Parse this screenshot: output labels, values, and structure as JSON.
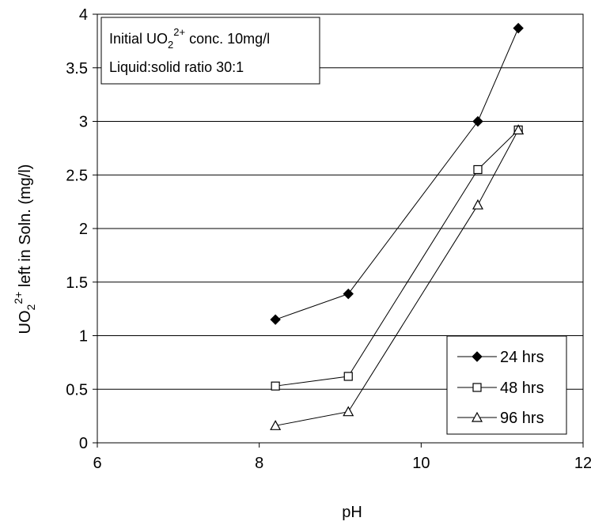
{
  "chart_data": {
    "type": "line",
    "title": "",
    "xlabel": "pH",
    "ylabel": {
      "prefix": "UO",
      "sub": "2",
      "sup": "2+",
      "suffix": " left in Soln. (mg/l)"
    },
    "xlim": [
      6,
      12
    ],
    "ylim": [
      0,
      4
    ],
    "x_ticks": [
      "6",
      "8",
      "10",
      "12"
    ],
    "y_ticks": [
      "0",
      "0.5",
      "1",
      "1.5",
      "2",
      "2.5",
      "3",
      "3.5",
      "4"
    ],
    "grid": "horizontal",
    "legend_position": "bottom-right",
    "annotation": {
      "line1_prefix": "Initial UO",
      "line1_sub": "2",
      "line1_sup": "2+",
      "line1_suffix": " conc. 10mg/l",
      "line2": "Liquid:solid ratio 30:1"
    },
    "series": [
      {
        "name": "24 hrs",
        "marker": "diamond-filled",
        "x": [
          8.2,
          9.1,
          10.7,
          11.2
        ],
        "y": [
          1.15,
          1.39,
          3.0,
          3.87
        ]
      },
      {
        "name": "48 hrs",
        "marker": "square-open",
        "x": [
          8.2,
          9.1,
          10.7,
          11.2
        ],
        "y": [
          0.53,
          0.62,
          2.55,
          2.92
        ]
      },
      {
        "name": "96 hrs",
        "marker": "triangle-open",
        "x": [
          8.2,
          9.1,
          10.7,
          11.2
        ],
        "y": [
          0.16,
          0.29,
          2.22,
          2.92
        ]
      }
    ],
    "colors": {
      "line": "#000000",
      "marker_fill": "#000000",
      "background": "#ffffff"
    }
  }
}
